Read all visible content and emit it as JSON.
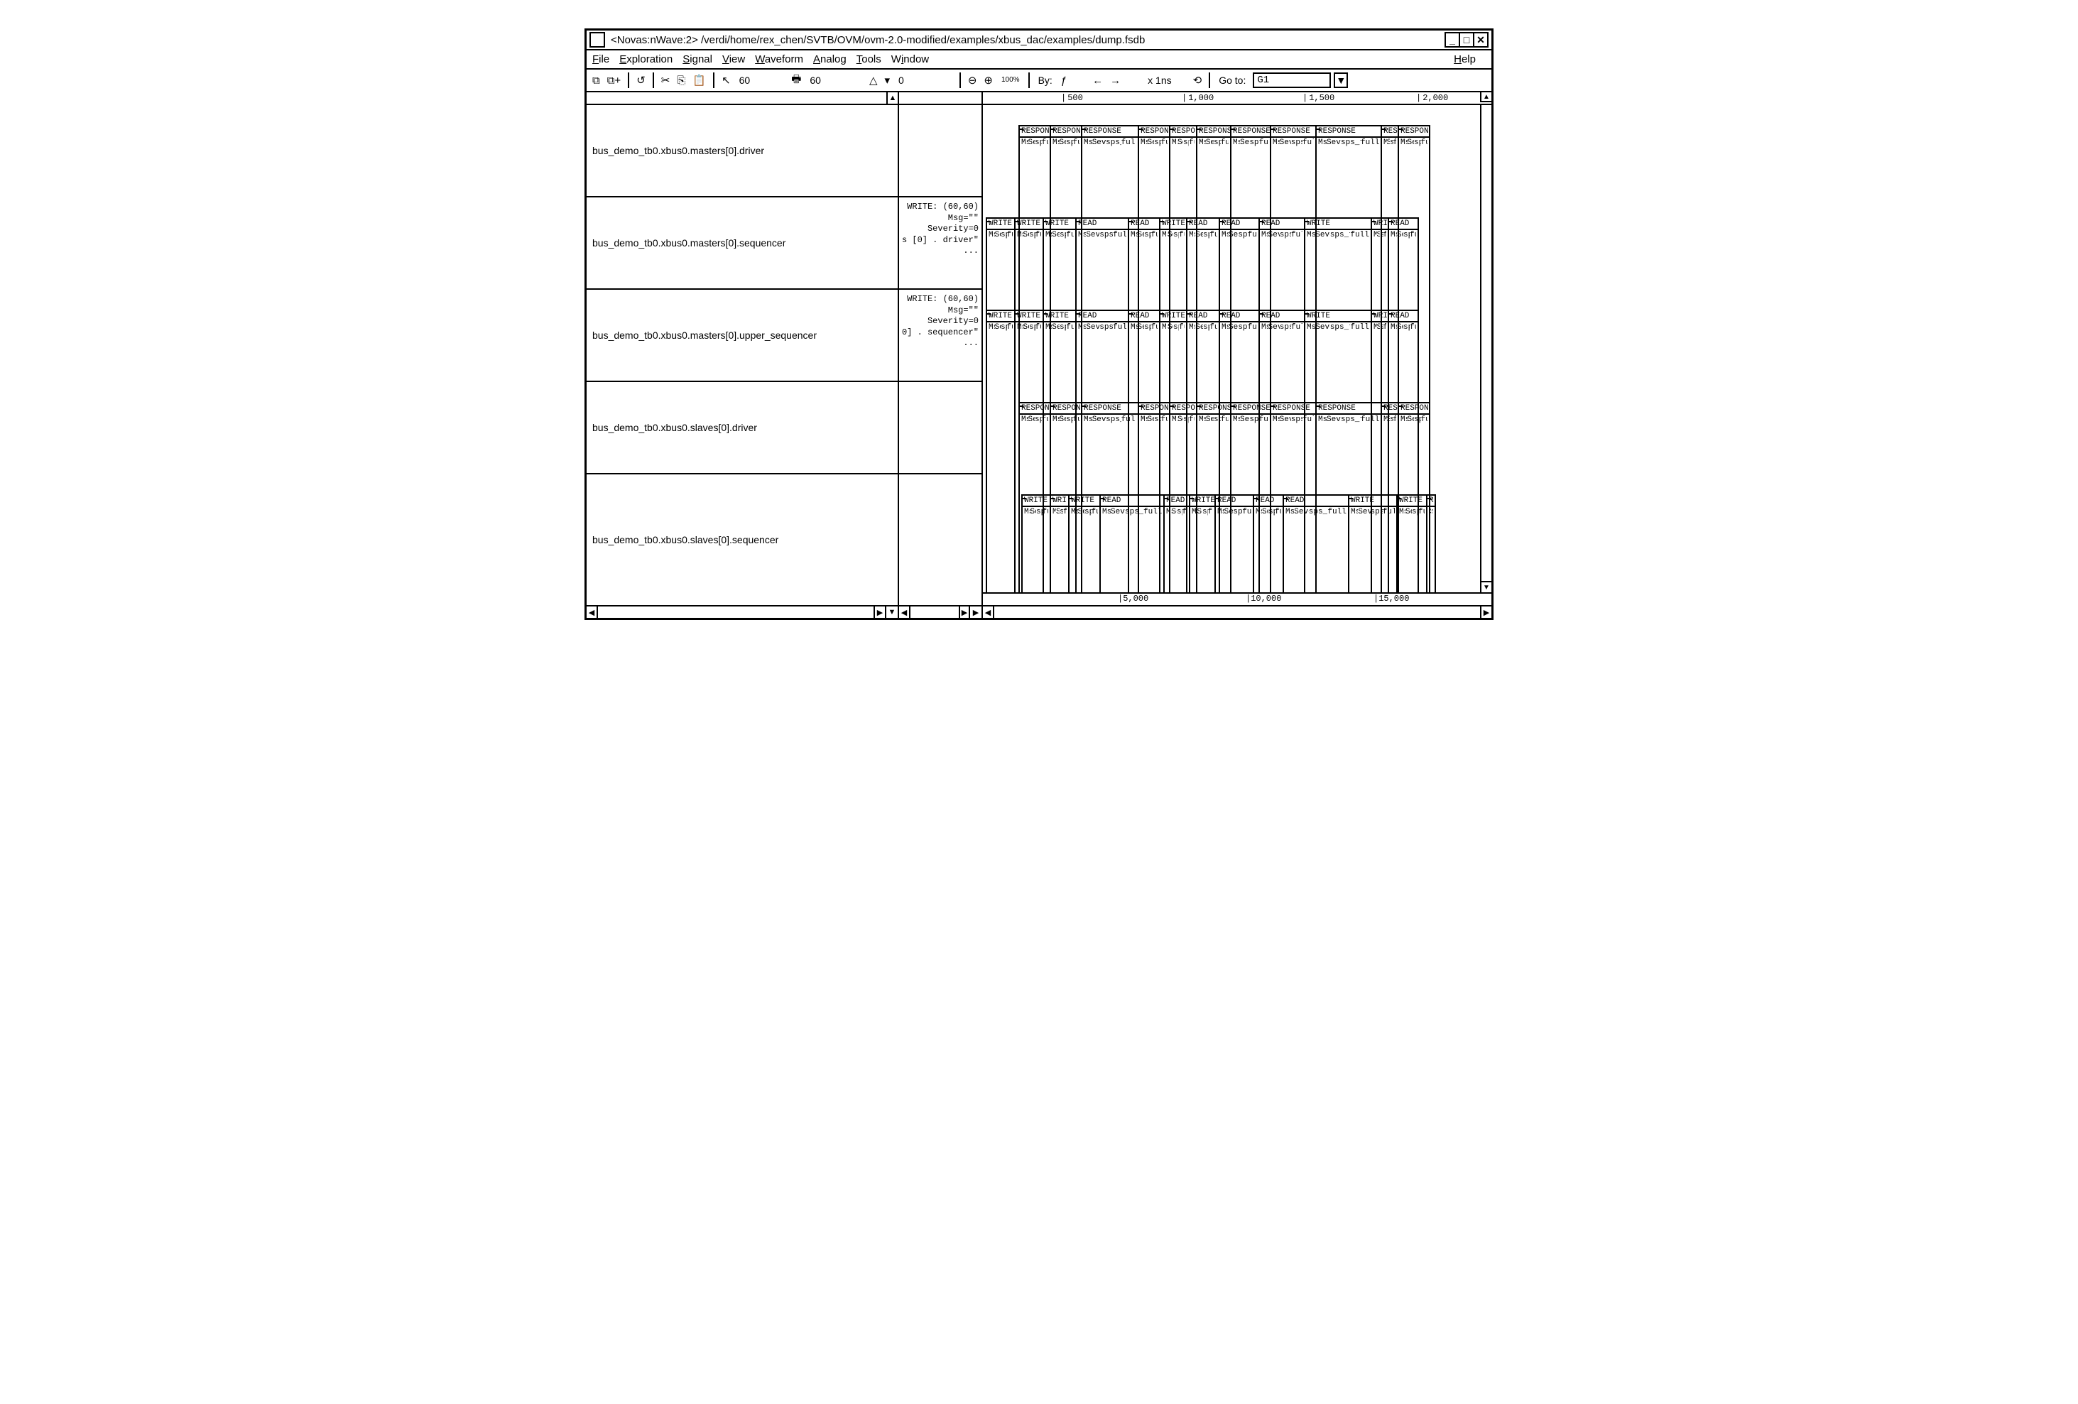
{
  "window": {
    "title": "<Novas:nWave:2> /verdi/home/rex_chen/SVTB/OVM/ovm-2.0-modified/examples/xbus_dac/examples/dump.fsdb"
  },
  "menu": {
    "items": [
      "File",
      "Exploration",
      "Signal",
      "View",
      "Waveform",
      "Analog",
      "Tools",
      "Window"
    ],
    "help": "Help"
  },
  "toolbar": {
    "val1": "60",
    "val2": "60",
    "delta": "0",
    "zoom_pct": "100%",
    "by_label": "By:",
    "x_label": "x 1ns",
    "goto_label": "Go to:",
    "goto_value": "G1"
  },
  "ruler_top": {
    "ticks": [
      {
        "pos": 110,
        "label": "500"
      },
      {
        "pos": 280,
        "label": "1,000"
      },
      {
        "pos": 450,
        "label": "1,500"
      },
      {
        "pos": 610,
        "label": "2,000"
      }
    ]
  },
  "ruler_bottom": {
    "ticks": [
      {
        "pos": 190,
        "label": "5,000"
      },
      {
        "pos": 370,
        "label": "10,000"
      },
      {
        "pos": 550,
        "label": "15,000"
      }
    ]
  },
  "signals": [
    {
      "name": "bus_demo_tb0.xbus0.masters[0].driver",
      "mid": ""
    },
    {
      "name": "bus_demo_tb0.xbus0.masters[0].sequencer",
      "mid": "WRITE: (60,60)\nMsg=\"\"\nSeverity=0\ns [0] . driver\"\n..."
    },
    {
      "name": "bus_demo_tb0.xbus0.masters[0].upper_sequencer",
      "mid": "WRITE: (60,60)\nMsg=\"\"\nSeverity=0\n0] . sequencer\"\n..."
    },
    {
      "name": "bus_demo_tb0.xbus0.slaves[0].driver",
      "mid": ""
    },
    {
      "name": "bus_demo_tb0.xbus0.slaves[0].sequencer",
      "mid": ""
    }
  ],
  "wave_rows": [
    {
      "offset": 50,
      "txns": [
        {
          "w": 46,
          "h": "RESPON",
          "b": [
            "Msg=\"\"",
            "Severi",
            "sps_to",
            "full_s"
          ]
        },
        {
          "w": 46,
          "h": "RESPON",
          "b": [
            "Msg=\"\"",
            "Severi",
            "sps_to",
            "full_s"
          ]
        },
        {
          "w": 82,
          "h": "RESPONSE",
          "b": [
            "Msg=\"\"",
            "Severity=0",
            "sps_to_name",
            "full_seq_pa"
          ]
        },
        {
          "w": 46,
          "h": "RESPON",
          "b": [
            "Msg=\"\"",
            "Severi",
            "sps_to",
            "full_s"
          ]
        },
        {
          "w": 40,
          "h": "RESPO",
          "b": [
            "Msg=\"",
            "Sever",
            "sps_t",
            "full_"
          ]
        },
        {
          "w": 50,
          "h": "RESPONS",
          "b": [
            "Msg=\"\"",
            "Severit",
            "sps_to",
            "full_se"
          ]
        },
        {
          "w": 58,
          "h": "RESPONSE",
          "b": [
            "Msg=\"\"",
            "Severity",
            "sps_to_r",
            "full_sec"
          ]
        },
        {
          "w": 66,
          "h": "RESPONSE",
          "b": [
            "Msg=\"\"",
            "Severity=0",
            "sps_to_nam",
            "full_seq_p"
          ]
        },
        {
          "w": 94,
          "h": "RESPONSE",
          "b": [
            "Msg=\"\"",
            "Severity=0",
            "sps_to_namme=\"",
            "full_seq_path"
          ]
        },
        {
          "w": 26,
          "h": "RES",
          "b": [
            "Msg",
            "Sev",
            "sps",
            "ful"
          ]
        },
        {
          "w": 46,
          "h": "RESPON",
          "b": [
            "Msg=\"\"",
            "Sever:",
            "sps_to",
            "full_s"
          ]
        }
      ]
    },
    {
      "offset": 4,
      "txns": [
        {
          "w": 42,
          "h": "WRITE",
          "b": [
            "Msg=\"\"",
            "Severi",
            "sps_to",
            "full_s"
          ]
        },
        {
          "w": 42,
          "h": "WRITE",
          "b": [
            "Msg=\"\"",
            "Severi",
            "sps_to",
            "full_s"
          ]
        },
        {
          "w": 48,
          "h": "WRITE",
          "b": [
            "Msg=\"\"",
            "Severit",
            "sps_to",
            "full_se"
          ]
        },
        {
          "w": 76,
          "h": "READ",
          "b": [
            "Msg=\"\"",
            "Severity=0",
            "sps_to_nam",
            "full_seq_p"
          ]
        },
        {
          "w": 46,
          "h": "READ",
          "b": [
            "Msg=\"\"",
            "Severi",
            "sps_to",
            "full_s"
          ]
        },
        {
          "w": 40,
          "h": "WRITE",
          "b": [
            "Msg=\"",
            "Sever",
            "sps_t",
            "full_"
          ]
        },
        {
          "w": 48,
          "h": "READ",
          "b": [
            "Msg=\"\"",
            "Severit",
            "sps_to",
            "full_se"
          ]
        },
        {
          "w": 58,
          "h": "READ",
          "b": [
            "Msg=\"\"",
            "Severity",
            "sps_to_r",
            "full_sec"
          ]
        },
        {
          "w": 66,
          "h": "READ",
          "b": [
            "Msg=\"\"",
            "Severity=0",
            "sps_to_nam",
            "full_seq_p"
          ]
        },
        {
          "w": 96,
          "h": "WRITE",
          "b": [
            "Msg=\"\"",
            "Severity=0",
            "sps_to_namme=\"",
            "full_seq_path"
          ]
        },
        {
          "w": 26,
          "h": "WRI",
          "b": [
            "Msg",
            "Sev",
            "sps",
            "ful"
          ]
        },
        {
          "w": 44,
          "h": "READ",
          "b": [
            "Msg=\"",
            "Sever",
            "sps_t",
            "full_"
          ]
        }
      ]
    },
    {
      "offset": 4,
      "txns": [
        {
          "w": 42,
          "h": "WRITE",
          "b": [
            "Msg=\"\"",
            "Severi",
            "sps_to",
            "full_s"
          ]
        },
        {
          "w": 42,
          "h": "WRITE",
          "b": [
            "Msg=\"\"",
            "Severi",
            "sps_to",
            "full_s"
          ]
        },
        {
          "w": 48,
          "h": "WRITE",
          "b": [
            "Msg=\"\"",
            "Severit",
            "sps_to",
            "full_se"
          ]
        },
        {
          "w": 76,
          "h": "READ",
          "b": [
            "Msg=\"\"",
            "Severity=0",
            "sps_to_nam",
            "full_seq_p"
          ]
        },
        {
          "w": 46,
          "h": "READ",
          "b": [
            "Msg=\"\"",
            "Severi",
            "sps_to",
            "full_s"
          ]
        },
        {
          "w": 40,
          "h": "WRITE",
          "b": [
            "Msg=\"",
            "Sever",
            "sps_t",
            "full_"
          ]
        },
        {
          "w": 48,
          "h": "READ",
          "b": [
            "Msg=\"\"",
            "Severit",
            "sps_to",
            "full_se"
          ]
        },
        {
          "w": 58,
          "h": "READ",
          "b": [
            "Msg=\"\"",
            "Severity",
            "sps_to_r",
            "full_sec"
          ]
        },
        {
          "w": 66,
          "h": "READ",
          "b": [
            "Msg=\"\"",
            "Severity=0",
            "sps_to_nam",
            "full_seq_p"
          ]
        },
        {
          "w": 96,
          "h": "WRITE",
          "b": [
            "Msg=\"\"",
            "Severity=0",
            "sps_to_namme=\"",
            "full_seq_path"
          ]
        },
        {
          "w": 26,
          "h": "WRI",
          "b": [
            "Msg",
            "Sev",
            "sps",
            "ful"
          ]
        },
        {
          "w": 44,
          "h": "READ",
          "b": [
            "Msg=\"",
            "Sever",
            "sps_t",
            "full_"
          ]
        }
      ]
    },
    {
      "offset": 50,
      "txns": [
        {
          "w": 46,
          "h": "RESPON",
          "b": [
            "Msg=\"\"",
            "Severi",
            "sps_to",
            "full_s"
          ]
        },
        {
          "w": 46,
          "h": "RESPON",
          "b": [
            "Msg=\"\"",
            "Severi",
            "sps_to",
            "full_s"
          ]
        },
        {
          "w": 82,
          "h": "RESPONSE",
          "b": [
            "Msg=\"\"",
            "Severity=0",
            "sps_to_name",
            "full_seq_pa"
          ]
        },
        {
          "w": 46,
          "h": "RESPON",
          "b": [
            "Msg=\"\"",
            "Severi",
            "sps_to",
            "full_s"
          ]
        },
        {
          "w": 40,
          "h": "RESPO",
          "b": [
            "Msg=\"",
            "Sever",
            "sps_t",
            "full_"
          ]
        },
        {
          "w": 50,
          "h": "RESPONS",
          "b": [
            "Msg=\"\"",
            "Severit",
            "sps_to",
            "full_se"
          ]
        },
        {
          "w": 58,
          "h": "RESPONSE",
          "b": [
            "Msg=\"\"",
            "Severity",
            "sps_to_r",
            "full_sec"
          ]
        },
        {
          "w": 66,
          "h": "RESPONSE",
          "b": [
            "Msg=\"\"",
            "Severity=0",
            "sps_to_nam",
            "full_seq_p"
          ]
        },
        {
          "w": 94,
          "h": "RESPONSE",
          "b": [
            "Msg=\"\"",
            "Severity=0",
            "sps_to_namme=\"",
            "full_seq_path"
          ]
        },
        {
          "w": 26,
          "h": "RES",
          "b": [
            "Msg",
            "Sev",
            "sps",
            "ful"
          ]
        },
        {
          "w": 46,
          "h": "RESPON",
          "b": [
            "Msg=\"\"",
            "Sever:",
            "sps_to",
            "full_s"
          ]
        }
      ]
    },
    {
      "offset": 54,
      "txns": [
        {
          "w": 42,
          "h": "WRITE",
          "b": [
            "Msg=\"\"",
            "Severi",
            "sps_to",
            "full_s"
          ]
        },
        {
          "w": 28,
          "h": "WRI",
          "b": [
            "Msg",
            "Sev",
            "sps",
            "ful"
          ]
        },
        {
          "w": 46,
          "h": "WRITE",
          "b": [
            "Msg=\"\"",
            "Severi",
            "sps_to",
            "full_s"
          ]
        },
        {
          "w": 92,
          "h": "READ",
          "b": [
            "Msg=\"\"",
            "Severity=0",
            "sps_to_name=\"",
            "full_seq_path"
          ]
        },
        {
          "w": 38,
          "h": "READ",
          "b": [
            "Msg=\"",
            "Sever",
            "sps_t",
            "full_"
          ]
        },
        {
          "w": 38,
          "h": "WRITE",
          "b": [
            "Msg=\"",
            "Sever",
            "sps_t",
            "full_"
          ]
        },
        {
          "w": 56,
          "h": "READ",
          "b": [
            "Msg=\"\"",
            "Severity",
            "sps_to_r",
            "full_sec"
          ]
        },
        {
          "w": 44,
          "h": "READ",
          "b": [
            "Msg=\"\"",
            "Severi",
            "sps_to",
            "full_s"
          ]
        },
        {
          "w": 94,
          "h": "READ",
          "b": [
            "Msg=\"\"",
            "Severity=0",
            "sps_to_name=\"",
            "full_seq_path"
          ]
        },
        {
          "w": 70,
          "h": "WRITE",
          "b": [
            "Msg=\"\"",
            "Severity=0",
            "sps_to_nam",
            "full_seq_p"
          ]
        },
        {
          "w": 44,
          "h": "WRITE",
          "b": [
            "Msg=\"\"",
            "Severi",
            "sps_to",
            "full_s"
          ]
        },
        {
          "w": 14,
          "h": "R",
          "b": [
            "M",
            "S",
            "s",
            "f"
          ]
        }
      ]
    }
  ]
}
